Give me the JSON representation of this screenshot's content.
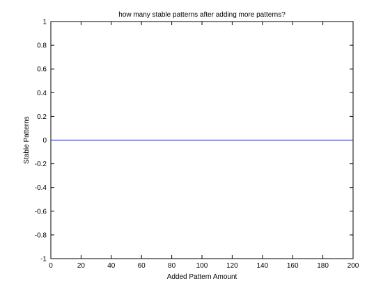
{
  "chart_data": {
    "type": "line",
    "title": "how many stable patterns after adding more patterns?",
    "xlabel": "Added Pattern Amount",
    "ylabel": "Stable Patterns",
    "xlim": [
      0,
      200
    ],
    "ylim": [
      -1,
      1
    ],
    "xticks": [
      0,
      20,
      40,
      60,
      80,
      100,
      120,
      140,
      160,
      180,
      200
    ],
    "yticks": [
      -1,
      -0.8,
      -0.6,
      -0.4,
      -0.2,
      0,
      0.2,
      0.4,
      0.6,
      0.8,
      1
    ],
    "xtick_labels": [
      "0",
      "20",
      "40",
      "60",
      "80",
      "100",
      "120",
      "140",
      "160",
      "180",
      "200"
    ],
    "ytick_labels": [
      "-1",
      "-0.8",
      "-0.6",
      "-0.4",
      "-0.2",
      "0",
      "0.2",
      "0.4",
      "0.6",
      "0.8",
      "1"
    ],
    "grid": false,
    "series": [
      {
        "color": "#0000ff",
        "x": [
          0,
          200
        ],
        "y": [
          0,
          0
        ]
      }
    ]
  }
}
